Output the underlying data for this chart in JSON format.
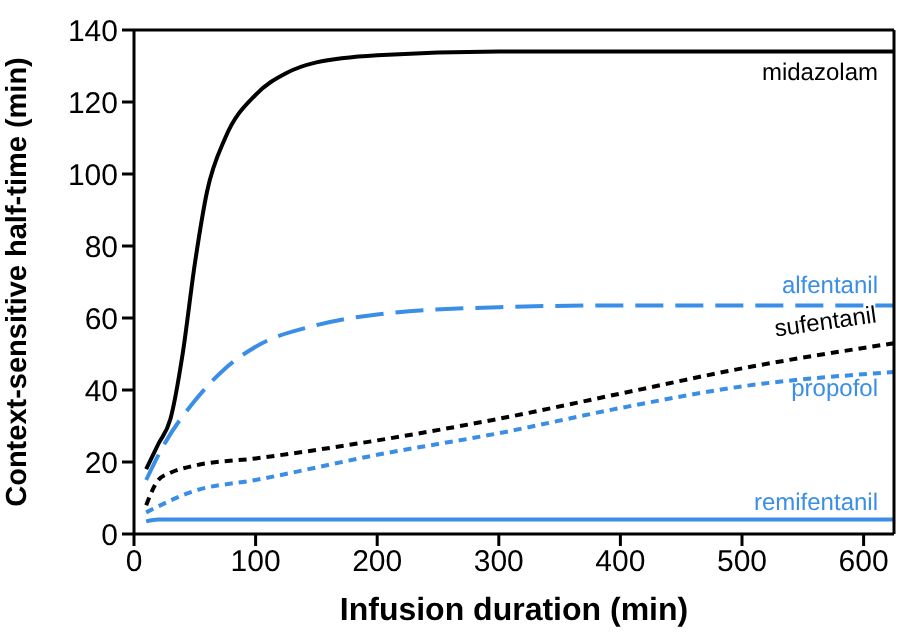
{
  "chart_data": {
    "type": "line",
    "xlabel": "Infusion duration (min)",
    "ylabel": "Context-sensitive half-time (min)",
    "xlim": [
      0,
      625
    ],
    "xticks": [
      0,
      100,
      200,
      300,
      400,
      500,
      600
    ],
    "ylim": [
      0,
      140
    ],
    "yticks": [
      0,
      20,
      40,
      60,
      80,
      100,
      120,
      140
    ],
    "legend": false,
    "marker": "none",
    "series": [
      {
        "name": "midazolam",
        "color": "#000000",
        "line_style": "solid",
        "x": [
          10,
          20,
          30,
          40,
          50,
          60,
          75,
          100,
          125,
          150,
          200,
          300,
          400,
          625
        ],
        "values": [
          18,
          25,
          32,
          50,
          75,
          95,
          110,
          122,
          128,
          131,
          133,
          134,
          134,
          134
        ]
      },
      {
        "name": "alfentanil",
        "color": "#3a8ee6",
        "line_style": "dashed",
        "x": [
          10,
          25,
          50,
          75,
          100,
          150,
          200,
          300,
          400,
          625
        ],
        "values": [
          15,
          25,
          37,
          46,
          52,
          58,
          61,
          63,
          63.5,
          63.5
        ]
      },
      {
        "name": "sufentanil",
        "color": "#000000",
        "line_style": "dotted",
        "x": [
          10,
          20,
          30,
          50,
          100,
          200,
          300,
          400,
          500,
          625
        ],
        "values": [
          8,
          15,
          17,
          19,
          21,
          26,
          32,
          39,
          46,
          53
        ]
      },
      {
        "name": "propofol",
        "color": "#3a8ee6",
        "line_style": "dotted",
        "x": [
          10,
          50,
          100,
          200,
          300,
          400,
          500,
          625
        ],
        "values": [
          6,
          12,
          15,
          22,
          28,
          35,
          41,
          45
        ]
      },
      {
        "name": "remifentanil",
        "color": "#3a8ee6",
        "line_style": "solid",
        "x": [
          10,
          20,
          625
        ],
        "values": [
          3.5,
          4,
          4
        ]
      }
    ]
  }
}
